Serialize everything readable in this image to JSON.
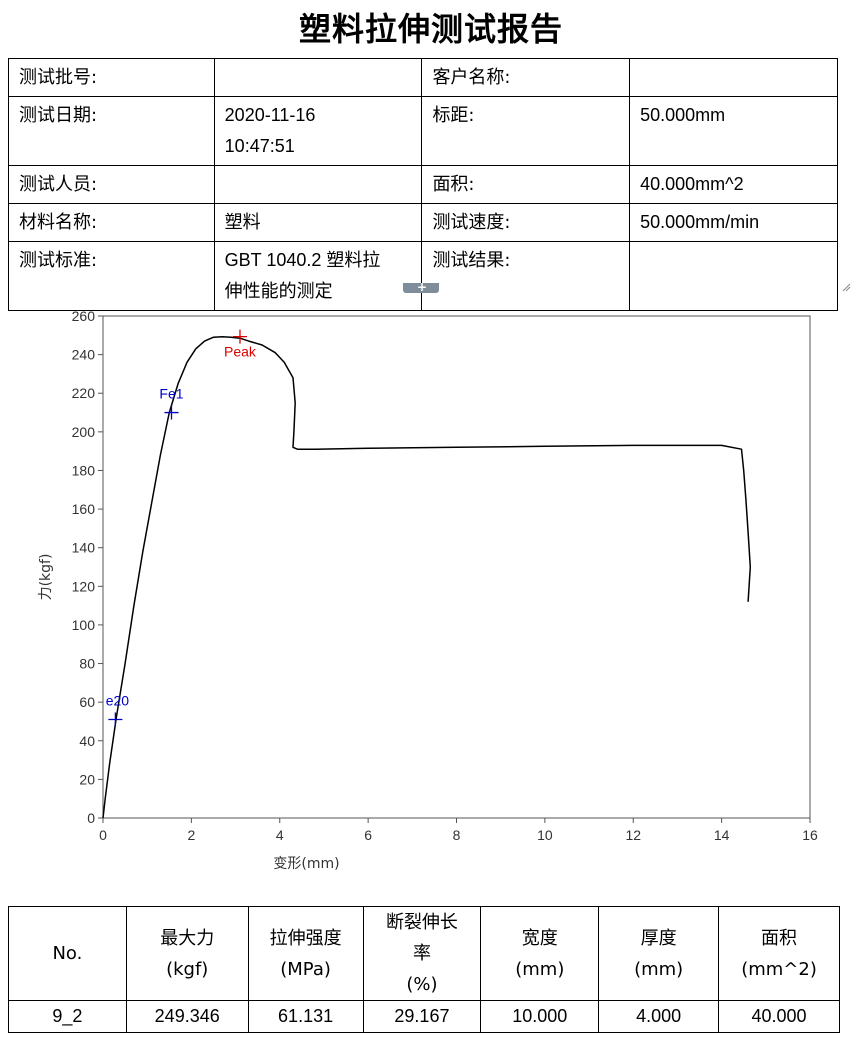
{
  "title": "塑料拉伸测试报告",
  "info_rows": [
    {
      "l1": "测试批号:",
      "v1": "",
      "l2": "客户名称:",
      "v2": ""
    },
    {
      "l1": "测试日期:",
      "v1a": "2020-11-16",
      "v1b": "10:47:51",
      "l2": "标距:",
      "v2": "50.000mm"
    },
    {
      "l1": "测试人员:",
      "v1": "",
      "l2": "面积:",
      "v2": "40.000mm^2"
    },
    {
      "l1": "材料名称:",
      "v1": "塑料",
      "l2": "测试速度:",
      "v2": "50.000mm/min"
    },
    {
      "l1": "测试标准:",
      "v1a": "GBT 1040.2 塑料拉",
      "v1b": "伸性能的测定",
      "l2": "测试结果:",
      "v2": ""
    }
  ],
  "splitter_icon": "plus-icon",
  "chart_data": {
    "type": "line",
    "xlabel": "变形(mm)",
    "ylabel": "力(kgf)",
    "xlim": [
      0,
      16
    ],
    "ylim": [
      0,
      260
    ],
    "x_ticks": [
      "0",
      "2",
      "4",
      "6",
      "8",
      "10",
      "12",
      "14",
      "16"
    ],
    "y_ticks": [
      "0",
      "20",
      "40",
      "60",
      "80",
      "100",
      "120",
      "140",
      "160",
      "180",
      "200",
      "220",
      "240",
      "260"
    ],
    "grid": false,
    "line_color": "#000000",
    "series": [
      {
        "x": [
          0,
          0.05,
          0.15,
          0.3,
          0.5,
          0.7,
          0.9,
          1.1,
          1.3,
          1.5,
          1.7,
          1.9,
          2.1,
          2.3,
          2.5,
          2.7,
          2.9,
          3.1,
          3.3,
          3.6,
          3.9,
          4.1,
          4.3,
          4.35,
          4.32,
          4.3,
          4.4,
          4.8,
          6,
          8,
          10,
          12,
          13,
          14,
          14.45,
          14.5,
          14.55,
          14.6,
          14.65,
          14.6
        ],
        "y": [
          0,
          10,
          28,
          52,
          80,
          110,
          138,
          163,
          188,
          210,
          225,
          236,
          243,
          247,
          249,
          249.3,
          249,
          248.5,
          247,
          245,
          241,
          236,
          228,
          215,
          200,
          192,
          191,
          191,
          191.5,
          192,
          192.5,
          193,
          193,
          193,
          191,
          180,
          165,
          148,
          130,
          112
        ]
      }
    ],
    "markers": [
      {
        "label": "e20",
        "x": 0.28,
        "y": 51,
        "color": "#0000cc"
      },
      {
        "label": "Fe1",
        "x": 1.55,
        "y": 210,
        "color": "#0000cc"
      },
      {
        "label": "Peak",
        "x": 3.1,
        "y": 249.3,
        "color": "#dd0000"
      }
    ]
  },
  "results": {
    "headers": [
      "No.",
      "最大力",
      "(kgf)",
      "拉伸强度",
      "(MPa)",
      "断裂伸长",
      "率",
      "(%)",
      "宽度",
      "(mm)",
      "厚度",
      "(mm)",
      "面积",
      "(mm^2)"
    ],
    "row": [
      "9_2",
      "249.346",
      "61.131",
      "29.167",
      "10.000",
      "4.000",
      "40.000"
    ]
  }
}
